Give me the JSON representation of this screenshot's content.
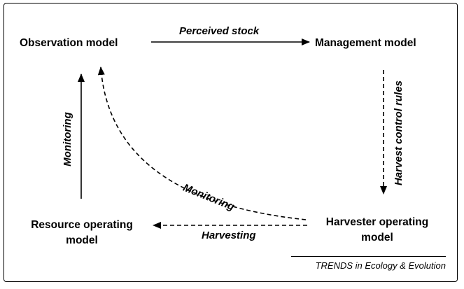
{
  "nodes": {
    "observation_model": "Observation model",
    "management_model": "Management model",
    "resource_operating_model": {
      "line1": "Resource operating",
      "line2": "model"
    },
    "harvester_operating_model": {
      "line1": "Harvester operating",
      "line2": "model"
    }
  },
  "edges": {
    "perceived_stock": "Perceived stock",
    "harvest_control_rules": "Harvest control rules",
    "monitoring_vertical": "Monitoring",
    "monitoring_diagonal": "Monitoring",
    "harvesting": "Harvesting"
  },
  "credit": "TRENDS in Ecology & Evolution",
  "colors": {
    "ink": "#000000",
    "background": "#ffffff"
  }
}
